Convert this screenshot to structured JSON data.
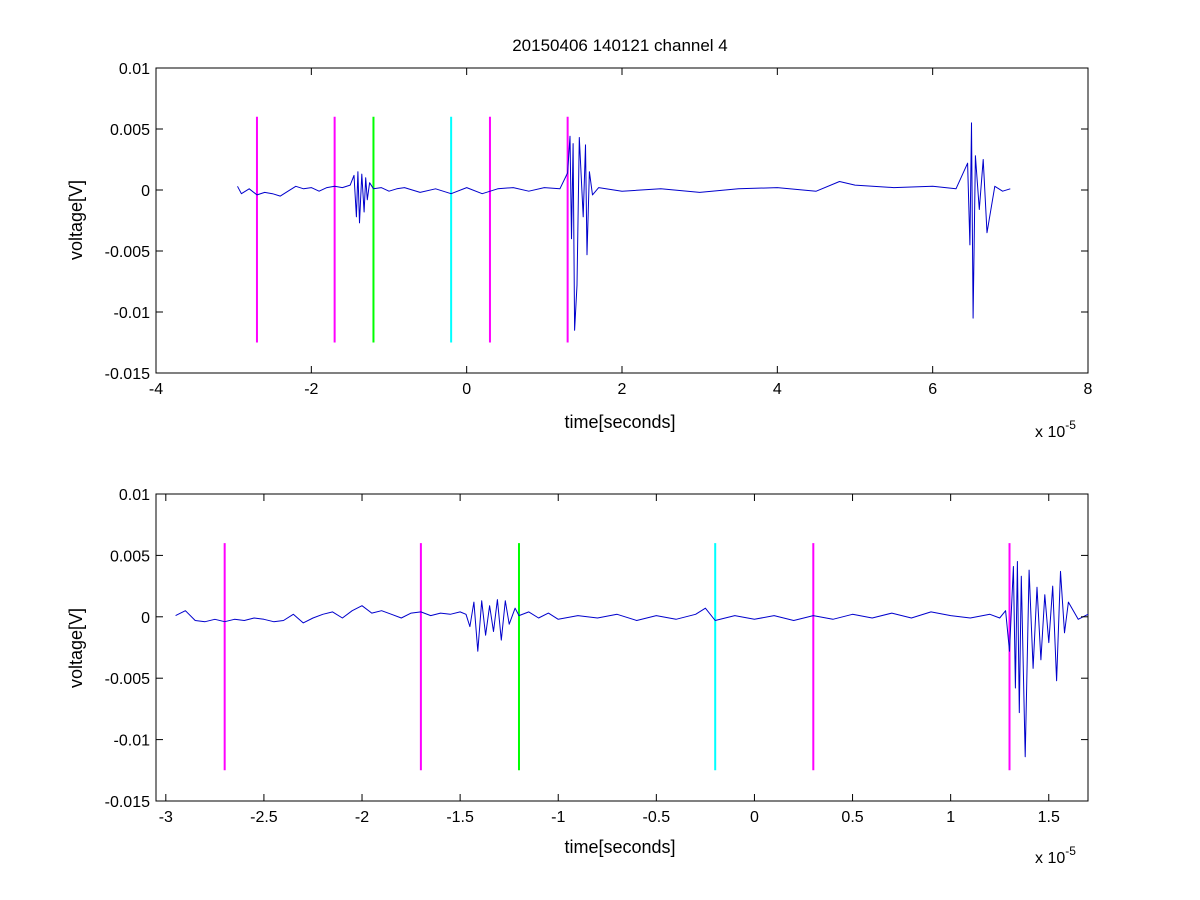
{
  "chart_data": [
    {
      "type": "line",
      "title": "20150406 140121 channel 4",
      "xlabel": "time[seconds]",
      "ylabel": "voltage[V]",
      "x_exponent_label": "x 10",
      "x_exponent_power": "-5",
      "xlim": [
        -4,
        8
      ],
      "ylim": [
        -0.015,
        0.01
      ],
      "x_ticks": [
        -4,
        -2,
        0,
        2,
        4,
        6,
        8
      ],
      "x_tick_labels": [
        "-4",
        "-2",
        "0",
        "2",
        "4",
        "6",
        "8"
      ],
      "y_ticks": [
        -0.015,
        -0.01,
        -0.005,
        0,
        0.005,
        0.01
      ],
      "y_tick_labels": [
        "-0.015",
        "-0.01",
        "-0.005",
        "0",
        "0.005",
        "0.01"
      ],
      "grid": false,
      "trace_color": "#0000cc",
      "series": [
        {
          "x": [
            -2.95,
            -2.9,
            -2.8,
            -2.7,
            -2.6,
            -2.5,
            -2.4,
            -2.3,
            -2.2,
            -2.1,
            -2.0,
            -1.9,
            -1.8,
            -1.7,
            -1.6,
            -1.5,
            -1.45,
            -1.42,
            -1.4,
            -1.38,
            -1.35,
            -1.32,
            -1.3,
            -1.28,
            -1.25,
            -1.2,
            -1.1,
            -1.0,
            -0.9,
            -0.8,
            -0.6,
            -0.4,
            -0.2,
            0.0,
            0.2,
            0.4,
            0.6,
            0.8,
            1.0,
            1.2,
            1.3,
            1.33,
            1.35,
            1.37,
            1.39,
            1.42,
            1.45,
            1.5,
            1.53,
            1.55,
            1.58,
            1.62,
            1.7,
            2.0,
            2.5,
            3.0,
            3.5,
            4.0,
            4.5,
            4.8,
            5.0,
            5.5,
            6.0,
            6.3,
            6.45,
            6.48,
            6.5,
            6.52,
            6.55,
            6.6,
            6.65,
            6.7,
            6.8,
            6.9,
            7.0
          ],
          "y": [
            0.0003,
            -0.0003,
            0.0001,
            -0.0004,
            -0.0002,
            -0.0003,
            -0.0005,
            -0.0001,
            0.0003,
            0.0001,
            0.0002,
            -0.0001,
            0.0002,
            0.0003,
            0.0002,
            0.0004,
            0.0012,
            -0.0022,
            0.0015,
            -0.0027,
            0.0013,
            -0.0018,
            0.001,
            -0.0008,
            0.0006,
            0.0001,
            0.0002,
            -0.0001,
            0.0001,
            0.0002,
            -0.0002,
            0.0001,
            -0.0003,
            0.0002,
            -0.0003,
            0.0001,
            0.0002,
            -0.0001,
            0.0002,
            0.0001,
            0.0014,
            0.0044,
            -0.004,
            0.0038,
            -0.0115,
            -0.0078,
            0.0043,
            -0.0022,
            0.0037,
            -0.0053,
            0.0015,
            -0.0004,
            0.0002,
            -0.0001,
            0.0001,
            -0.0002,
            0.0001,
            0.0002,
            -0.0001,
            0.0007,
            0.0004,
            0.0002,
            0.0003,
            0.0001,
            0.0022,
            -0.0045,
            0.0055,
            -0.0105,
            0.0028,
            -0.0016,
            0.0025,
            -0.0035,
            0.0003,
            -0.0001,
            0.0001
          ]
        }
      ],
      "vertical_markers": [
        {
          "x": -2.7,
          "color": "#ff00ff"
        },
        {
          "x": -1.7,
          "color": "#ff00ff"
        },
        {
          "x": -1.2,
          "color": "#00ff00"
        },
        {
          "x": -0.2,
          "color": "#00ffff"
        },
        {
          "x": 0.3,
          "color": "#ff00ff"
        },
        {
          "x": 1.3,
          "color": "#ff00ff"
        }
      ],
      "marker_y_range": [
        -0.0125,
        0.006
      ]
    },
    {
      "type": "line",
      "title": "",
      "xlabel": "time[seconds]",
      "ylabel": "voltage[V]",
      "x_exponent_label": "x 10",
      "x_exponent_power": "-5",
      "xlim": [
        -3.05,
        1.7
      ],
      "ylim": [
        -0.015,
        0.01
      ],
      "x_ticks": [
        -3,
        -2.5,
        -2,
        -1.5,
        -1,
        -0.5,
        0,
        0.5,
        1,
        1.5
      ],
      "x_tick_labels": [
        "-3",
        "-2.5",
        "-2",
        "-1.5",
        "-1",
        "-0.5",
        "0",
        "0.5",
        "1",
        "1.5"
      ],
      "y_ticks": [
        -0.015,
        -0.01,
        -0.005,
        0,
        0.005,
        0.01
      ],
      "y_tick_labels": [
        "-0.015",
        "-0.01",
        "-0.005",
        "0",
        "0.005",
        "0.01"
      ],
      "grid": false,
      "trace_color": "#0000cc",
      "series": [
        {
          "x": [
            -2.95,
            -2.9,
            -2.85,
            -2.8,
            -2.75,
            -2.7,
            -2.65,
            -2.6,
            -2.55,
            -2.5,
            -2.45,
            -2.4,
            -2.35,
            -2.3,
            -2.25,
            -2.2,
            -2.15,
            -2.1,
            -2.05,
            -2.0,
            -1.95,
            -1.9,
            -1.85,
            -1.8,
            -1.75,
            -1.7,
            -1.65,
            -1.6,
            -1.55,
            -1.5,
            -1.47,
            -1.45,
            -1.43,
            -1.41,
            -1.39,
            -1.37,
            -1.35,
            -1.33,
            -1.31,
            -1.29,
            -1.27,
            -1.25,
            -1.22,
            -1.2,
            -1.15,
            -1.1,
            -1.05,
            -1.0,
            -0.9,
            -0.8,
            -0.7,
            -0.6,
            -0.5,
            -0.4,
            -0.3,
            -0.25,
            -0.2,
            -0.1,
            0.0,
            0.1,
            0.2,
            0.3,
            0.4,
            0.5,
            0.6,
            0.7,
            0.8,
            0.9,
            1.0,
            1.1,
            1.2,
            1.25,
            1.28,
            1.3,
            1.32,
            1.33,
            1.34,
            1.35,
            1.36,
            1.38,
            1.4,
            1.42,
            1.44,
            1.46,
            1.48,
            1.5,
            1.52,
            1.54,
            1.56,
            1.58,
            1.6,
            1.65,
            1.7
          ],
          "y": [
            0.0001,
            0.0005,
            -0.0003,
            -0.0004,
            -0.0002,
            -0.0004,
            -0.0002,
            -0.0003,
            -0.0001,
            -0.0002,
            -0.0004,
            -0.0003,
            0.0002,
            -0.0005,
            -0.0001,
            0.0002,
            0.0004,
            -0.0001,
            0.0005,
            0.0009,
            0.0003,
            0.0005,
            0.0002,
            -0.0001,
            0.0003,
            0.0004,
            0.0001,
            0.0003,
            0.0002,
            0.0004,
            0.0002,
            -0.0008,
            0.0012,
            -0.0028,
            0.0013,
            -0.0015,
            0.0009,
            -0.0012,
            0.0014,
            -0.0019,
            0.0013,
            -0.0006,
            0.0007,
            0.0001,
            0.0004,
            -0.0001,
            0.0003,
            -0.0002,
            0.0001,
            -0.0001,
            0.0002,
            -0.0003,
            0.0001,
            -0.0002,
            0.0002,
            0.0007,
            -0.0003,
            0.0001,
            -0.0002,
            0.0001,
            -0.0003,
            0.0001,
            -0.0002,
            0.0002,
            -0.0001,
            0.0003,
            -0.0001,
            0.0004,
            0.0001,
            -0.0001,
            0.0002,
            -0.0001,
            0.0005,
            -0.0028,
            0.0041,
            -0.0058,
            0.0045,
            -0.0078,
            0.0033,
            -0.0114,
            0.0038,
            -0.0042,
            0.0024,
            -0.0035,
            0.0018,
            -0.0021,
            0.0025,
            -0.0052,
            0.0037,
            -0.0013,
            0.0012,
            -0.0002,
            0.0002
          ]
        }
      ],
      "vertical_markers": [
        {
          "x": -2.7,
          "color": "#ff00ff"
        },
        {
          "x": -1.7,
          "color": "#ff00ff"
        },
        {
          "x": -1.2,
          "color": "#00ff00"
        },
        {
          "x": -0.2,
          "color": "#00ffff"
        },
        {
          "x": 0.3,
          "color": "#ff00ff"
        },
        {
          "x": 1.3,
          "color": "#ff00ff"
        }
      ],
      "marker_y_range": [
        -0.0125,
        0.006
      ]
    }
  ]
}
